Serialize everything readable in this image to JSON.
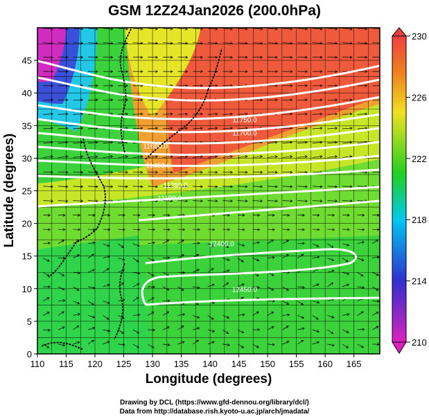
{
  "title": "GSM 12Z24Jan2026 (200.0hPa)",
  "x_axis": {
    "label": "Longitude (degrees)",
    "ticks": [
      "110",
      "115",
      "120",
      "125",
      "130",
      "135",
      "140",
      "145",
      "150",
      "155",
      "160",
      "165"
    ]
  },
  "y_axis": {
    "label": "Latitude  (degrees)",
    "ticks": [
      "0",
      "5",
      "10",
      "15",
      "20",
      "25",
      "30",
      "35",
      "40",
      "45"
    ]
  },
  "colorbar": {
    "ticks": [
      "210",
      "214",
      "218",
      "222",
      "226",
      "230"
    ],
    "colors": [
      "#e020c0",
      "#3030d0",
      "#00c8f0",
      "#20d020",
      "#f0e020",
      "#f08020",
      "#f04040"
    ]
  },
  "contour_labels": [
    {
      "text": "11750.0",
      "lon": 146,
      "lat": 35.5
    },
    {
      "text": "11700.0",
      "lon": 146,
      "lat": 33.5
    },
    {
      "text": "11600.0",
      "lon": 130.5,
      "lat": 31.5
    },
    {
      "text": "11400.0",
      "lon": 131,
      "lat": 28.5
    },
    {
      "text": "11250.0",
      "lon": 134,
      "lat": 25.5
    },
    {
      "text": "11100.0",
      "lon": 133,
      "lat": 23.5
    },
    {
      "text": "12400.0",
      "lon": 142,
      "lat": 16.5
    },
    {
      "text": "12450.0",
      "lon": 146,
      "lat": 9.5
    }
  ],
  "credits": {
    "line1": "Drawing by DCL (https://www.gfd-dennou.org/library/dcl/)",
    "line2": "Data from http://database.rish.kyoto-u.ac.jp/arch/jmadata/"
  }
}
